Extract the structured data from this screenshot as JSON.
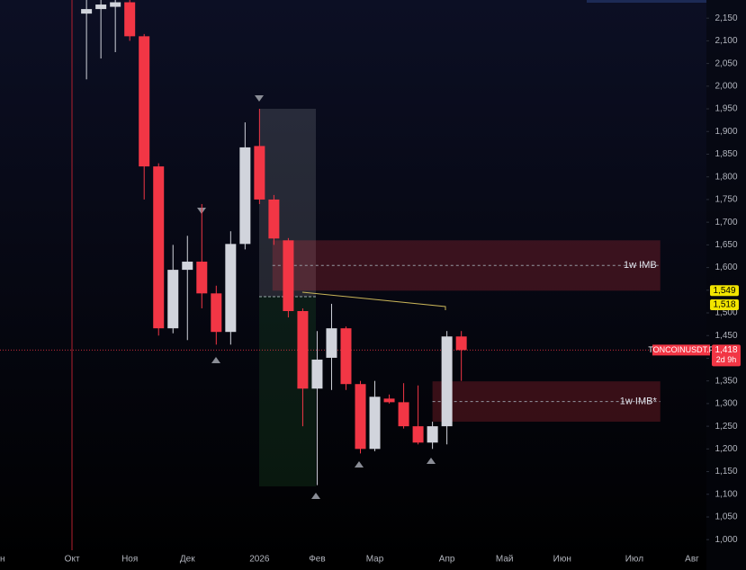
{
  "chart_data": {
    "type": "candlestick",
    "x": [
      0,
      1,
      2,
      3,
      4,
      5,
      6,
      7,
      8,
      9,
      10,
      11,
      12,
      13,
      14,
      15,
      16,
      17,
      18,
      19,
      20,
      21,
      22,
      23,
      24,
      25,
      26
    ],
    "open": [
      2160,
      2170,
      2175,
      2185,
      2110,
      1823,
      1466,
      1595,
      1613,
      1543,
      1458,
      1652,
      1868,
      1750,
      1660,
      1504,
      1333,
      1401,
      1466,
      1343,
      1200,
      1311,
      1303,
      1250,
      1214,
      1250,
      1448
    ],
    "high": [
      2190,
      2190,
      2190,
      2190,
      2115,
      1830,
      1650,
      1670,
      1740,
      1560,
      1680,
      1920,
      1950,
      1760,
      1665,
      1510,
      1460,
      1520,
      1470,
      1350,
      1350,
      1320,
      1345,
      1340,
      1260,
      1460,
      1460
    ],
    "low": [
      2015,
      2061,
      2075,
      2100,
      1750,
      1450,
      1455,
      1440,
      1510,
      1430,
      1430,
      1640,
      1740,
      1650,
      1490,
      1250,
      1120,
      1330,
      1330,
      1190,
      1195,
      1300,
      1245,
      1210,
      1200,
      1210,
      1350
    ],
    "close": [
      2170,
      2180,
      2185,
      2110,
      1823,
      1466,
      1595,
      1613,
      1543,
      1458,
      1652,
      1865,
      1750,
      1664,
      1504,
      1333,
      1397,
      1466,
      1343,
      1200,
      1315,
      1303,
      1250,
      1214,
      1250,
      1448,
      1418
    ],
    "up_color": "#d1d4dc",
    "down_color": "#f23645",
    "xlim": [
      -6,
      43
    ],
    "xticks": [
      {
        "value": -6,
        "label": "ен"
      },
      {
        "value": -1,
        "label": "Окт"
      },
      {
        "value": 3,
        "label": "Ноя"
      },
      {
        "value": 7,
        "label": "Дек"
      },
      {
        "value": 12,
        "label": "2026"
      },
      {
        "value": 16,
        "label": "Фев"
      },
      {
        "value": 20,
        "label": "Мар"
      },
      {
        "value": 25,
        "label": "Апр"
      },
      {
        "value": 29,
        "label": "Май"
      },
      {
        "value": 33,
        "label": "Июн"
      },
      {
        "value": 38,
        "label": "Июл"
      },
      {
        "value": 42,
        "label": "Авг"
      }
    ],
    "ylim": [
      933,
      2190
    ],
    "yticks": [
      {
        "value": 1000,
        "label": "1,000"
      },
      {
        "value": 1050,
        "label": "1,050"
      },
      {
        "value": 1100,
        "label": "1,100"
      },
      {
        "value": 1150,
        "label": "1,150"
      },
      {
        "value": 1200,
        "label": "1,200"
      },
      {
        "value": 1250,
        "label": "1,250"
      },
      {
        "value": 1300,
        "label": "1,300"
      },
      {
        "value": 1350,
        "label": "1,350"
      },
      {
        "value": 1400,
        "label": "1,400"
      },
      {
        "value": 1450,
        "label": "1,450"
      },
      {
        "value": 1500,
        "label": "1,500"
      },
      {
        "value": 1550,
        "label": "1,550"
      },
      {
        "value": 1600,
        "label": "1,600"
      },
      {
        "value": 1650,
        "label": "1,650"
      },
      {
        "value": 1700,
        "label": "1,700"
      },
      {
        "value": 1750,
        "label": "1,750"
      },
      {
        "value": 1800,
        "label": "1,800"
      },
      {
        "value": 1850,
        "label": "1,850"
      },
      {
        "value": 1900,
        "label": "1,900"
      },
      {
        "value": 1950,
        "label": "1,950"
      },
      {
        "value": 2000,
        "label": "2,000"
      },
      {
        "value": 2050,
        "label": "2,050"
      },
      {
        "value": 2100,
        "label": "2,100"
      },
      {
        "value": 2150,
        "label": "2,150"
      }
    ],
    "zones": [
      {
        "label": "1w IMB",
        "top": 1660,
        "bottom": 1549,
        "start": 12.9,
        "end": 39.8
      },
      {
        "label": "1w IMB*",
        "top": 1349,
        "bottom": 1260,
        "start": 24,
        "end": 39.8
      }
    ],
    "price_tags": [
      {
        "value": 1549,
        "label": "1,549",
        "color": "#f2e400"
      },
      {
        "value": 1518,
        "label": "1,518",
        "color": "#f2e400"
      }
    ],
    "last_price": {
      "value": 1418,
      "label": "1,418",
      "symbol": "TONCOINUSDT.P",
      "countdown": "2d 9h",
      "color": "#f23645"
    }
  }
}
